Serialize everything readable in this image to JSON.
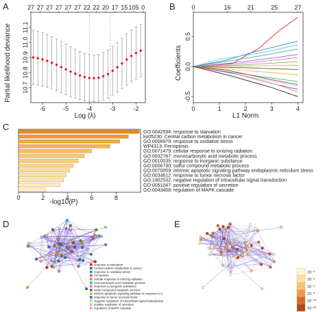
{
  "chart_data": [
    {
      "panel": "A",
      "type": "scatter",
      "xlabel": "Log (λ)",
      "ylabel": "Partial likelihood deviance",
      "xlim": [
        -6.5,
        -1.6
      ],
      "ylim": [
        10.6,
        11.2
      ],
      "x_ticks": [
        -6,
        -5,
        -4,
        -3,
        -2
      ],
      "y_ticks": [
        10.7,
        10.8,
        10.9,
        11.0,
        11.1
      ],
      "top_ticks": [
        {
          "x": -6.5,
          "label": "27"
        },
        {
          "x": -6.1,
          "label": "27"
        },
        {
          "x": -5.7,
          "label": "27"
        },
        {
          "x": -5.3,
          "label": "27"
        },
        {
          "x": -4.9,
          "label": "27"
        },
        {
          "x": -4.5,
          "label": "27"
        },
        {
          "x": -4.1,
          "label": "22"
        },
        {
          "x": -3.7,
          "label": "22"
        },
        {
          "x": -3.3,
          "label": "20"
        },
        {
          "x": -2.9,
          "label": "17"
        },
        {
          "x": -2.5,
          "label": "15"
        },
        {
          "x": -2.1,
          "label": "105"
        },
        {
          "x": -1.7,
          "label": "0"
        }
      ],
      "vlines": [
        -4.0,
        -3.1
      ],
      "x": [
        -6.4,
        -6.2,
        -6.0,
        -5.8,
        -5.6,
        -5.4,
        -5.2,
        -5.0,
        -4.8,
        -4.6,
        -4.4,
        -4.2,
        -4.0,
        -3.8,
        -3.6,
        -3.4,
        -3.2,
        -3.0,
        -2.8,
        -2.6,
        -2.4,
        -2.2,
        -2.0,
        -1.8
      ],
      "values": [
        10.9,
        10.895,
        10.887,
        10.877,
        10.865,
        10.851,
        10.836,
        10.821,
        10.806,
        10.792,
        10.78,
        10.77,
        10.764,
        10.762,
        10.765,
        10.775,
        10.79,
        10.812,
        10.835,
        10.86,
        10.886,
        10.91,
        10.93,
        10.945
      ],
      "err": [
        0.18,
        0.18,
        0.178,
        0.176,
        0.174,
        0.172,
        0.17,
        0.168,
        0.166,
        0.163,
        0.16,
        0.158,
        0.156,
        0.155,
        0.156,
        0.158,
        0.16,
        0.162,
        0.165,
        0.168,
        0.17,
        0.172,
        0.173,
        0.174
      ]
    },
    {
      "panel": "B",
      "type": "line",
      "xlabel": "L1 Norm",
      "ylabel": "Coefficients",
      "xlim": [
        0,
        4.2
      ],
      "ylim": [
        -0.6,
        0.9
      ],
      "x_ticks": [
        0,
        1,
        2,
        3,
        4
      ],
      "y_ticks": [
        -0.5,
        0.0,
        0.5
      ],
      "top_ticks": [
        {
          "x": 0,
          "label": "0"
        },
        {
          "x": 1.3,
          "label": "16"
        },
        {
          "x": 2.2,
          "label": "21"
        },
        {
          "x": 3.1,
          "label": "25"
        },
        {
          "x": 4,
          "label": "27"
        }
      ],
      "series": [
        {
          "color": "#e03030",
          "values": [
            [
              0,
              0
            ],
            [
              1.5,
              0.05
            ],
            [
              2.5,
              0.3
            ],
            [
              3.3,
              0.6
            ],
            [
              4,
              0.82
            ]
          ]
        },
        {
          "color": "#3c7fd6",
          "values": [
            [
              0,
              0
            ],
            [
              1.2,
              0.1
            ],
            [
              2.4,
              0.25
            ],
            [
              4,
              0.42
            ]
          ]
        },
        {
          "color": "#5fd0e8",
          "values": [
            [
              0,
              0
            ],
            [
              1,
              0.12
            ],
            [
              2.5,
              0.22
            ],
            [
              4,
              0.36
            ]
          ]
        },
        {
          "color": "#33b3a8",
          "values": [
            [
              0,
              0
            ],
            [
              1.2,
              0.08
            ],
            [
              2.6,
              0.18
            ],
            [
              4,
              0.29
            ]
          ]
        },
        {
          "color": "#9b5fd6",
          "values": [
            [
              0,
              0
            ],
            [
              1.5,
              0.06
            ],
            [
              3,
              0.14
            ],
            [
              4,
              0.2
            ]
          ]
        },
        {
          "color": "#e87ad0",
          "values": [
            [
              0,
              0
            ],
            [
              1.8,
              0.05
            ],
            [
              3,
              0.1
            ],
            [
              4,
              0.15
            ]
          ]
        },
        {
          "color": "#7fbf3f",
          "values": [
            [
              0,
              0
            ],
            [
              2,
              0.03
            ],
            [
              4,
              0.08
            ]
          ]
        },
        {
          "color": "#f2a640",
          "values": [
            [
              0,
              0
            ],
            [
              2,
              0.01
            ],
            [
              4,
              0.02
            ]
          ]
        },
        {
          "color": "#555555",
          "values": [
            [
              0,
              0
            ],
            [
              2,
              -0.02
            ],
            [
              4,
              -0.05
            ]
          ]
        },
        {
          "color": "#d6c640",
          "values": [
            [
              0,
              0
            ],
            [
              1.5,
              -0.05
            ],
            [
              3,
              -0.1
            ],
            [
              4,
              -0.14
            ]
          ]
        },
        {
          "color": "#3fbf7f",
          "values": [
            [
              0,
              0
            ],
            [
              1.2,
              -0.08
            ],
            [
              2.8,
              -0.18
            ],
            [
              4,
              -0.25
            ]
          ]
        },
        {
          "color": "#c04040",
          "values": [
            [
              0,
              0
            ],
            [
              1.3,
              -0.06
            ],
            [
              3,
              -0.22
            ],
            [
              4,
              -0.3
            ]
          ]
        },
        {
          "color": "#5a5ad0",
          "values": [
            [
              0,
              0
            ],
            [
              1.4,
              -0.1
            ],
            [
              3,
              -0.28
            ],
            [
              4,
              -0.38
            ]
          ]
        },
        {
          "color": "#9fd6f0",
          "values": [
            [
              0,
              0
            ],
            [
              1,
              -0.08
            ],
            [
              2.5,
              -0.2
            ],
            [
              4,
              -0.32
            ]
          ]
        },
        {
          "color": "#f07a7a",
          "values": [
            [
              0,
              0
            ],
            [
              1.6,
              -0.12
            ],
            [
              3.2,
              -0.3
            ],
            [
              4,
              -0.42
            ]
          ]
        },
        {
          "color": "#222222",
          "values": [
            [
              0,
              0
            ],
            [
              1.4,
              -0.15
            ],
            [
              3,
              -0.35
            ],
            [
              4,
              -0.5
            ]
          ]
        }
      ]
    },
    {
      "panel": "C",
      "type": "bar",
      "orientation": "horizontal",
      "xlabel": "-log10(P)",
      "xlim": [
        0,
        10
      ],
      "x_ticks": [
        0,
        2,
        4,
        6,
        8
      ],
      "categories": [
        "GO:0042594: response to starvation",
        "ko05230: Central carbon metabolism in cancer",
        "GO:0006979: response to oxidative stress",
        "WP4313: Ferroptosis",
        "GO:0071479: cellular response to ionizing radiation",
        "GO:0032787: monocarboxylic acid metabolic process",
        "GO:0010035: response to inorganic substance",
        "GO:0006790: sulfur compound metabolic process",
        "GO:0070059: intrinsic apoptotic signaling pathway endoplasmic reticulum stress",
        "GO:0034612: response to tumor necrosis factor",
        "GO:1902532: negative regulation of intracellular signal transduction",
        "GO:0051047: positive regulation of secretion",
        "GO:0043408: regulation of MAPK cascade"
      ],
      "values": [
        9.9,
        9.0,
        8.3,
        7.5,
        6.0,
        5.4,
        4.9,
        4.5,
        4.2,
        3.9,
        3.7,
        3.4,
        2.2
      ],
      "colors": [
        "#e58a22",
        "#ec9a30",
        "#f0a840",
        "#f2b450",
        "#f3be5e",
        "#f5c86e",
        "#f6cf7c",
        "#f7d68a",
        "#f8dc98",
        "#f9e1a5",
        "#fae6b2",
        "#fbebbf",
        "#fcf0cc"
      ]
    }
  ],
  "figure": {
    "panel_labels": [
      "A",
      "B",
      "C",
      "D",
      "E"
    ],
    "network_legend": {
      "entries": [
        {
          "label": "response to starvation",
          "color": "#d62728"
        },
        {
          "label": "Central carbon metabolism in cancer",
          "color": "#2b6fd6"
        },
        {
          "label": "response to oxidative stress",
          "color": "#2ca02c"
        },
        {
          "label": "Ferroptosis",
          "color": "#9467bd"
        },
        {
          "label": "cellular response to ionizing radiation",
          "color": "#ff7f0e"
        },
        {
          "label": "monocarboxylic acid metabolic process",
          "color": "#17becf"
        },
        {
          "label": "response to inorganic substance",
          "color": "#e377c2"
        },
        {
          "label": "sulfur compound metabolic process",
          "color": "#8c564b"
        },
        {
          "label": "intrinsic apoptotic signaling pathway in response to e",
          "color": "#bcbd22"
        },
        {
          "label": "response to tumor necrosis factor",
          "color": "#1f77b4"
        },
        {
          "label": "negative regulation of intracellular signal transduction",
          "color": "#98df8a"
        },
        {
          "label": "positive regulation of secretion",
          "color": "#c5b0d5"
        },
        {
          "label": "regulation of MAPK cascade",
          "color": "#ff9896"
        }
      ]
    },
    "pvalue_scale": {
      "labels": [
        "10⁻²",
        "10⁻³",
        "10⁻⁴",
        "10⁻⁶",
        "10⁻¹⁰",
        "10⁻²⁰"
      ],
      "colors": [
        "#fff6d5",
        "#fde3a8",
        "#f9c47a",
        "#f09a4e",
        "#d96a2a",
        "#b24818"
      ]
    }
  }
}
